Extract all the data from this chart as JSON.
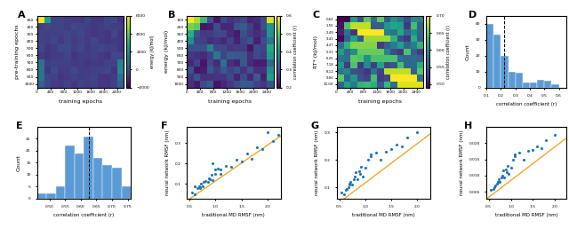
{
  "fig_width": 6.4,
  "fig_height": 2.57,
  "panel_A": {
    "label": "A",
    "xlabel": "training epochs",
    "ylabel": "pre-training epochs",
    "cbar_label": "energy (kJ/mol)",
    "vmin": -2000,
    "vmax": 6000,
    "cmap": "viridis",
    "nrows": 10,
    "ncols": 13,
    "xtick_vals": [
      0,
      400,
      800,
      1200,
      1600,
      2000,
      2400
    ],
    "ytick_vals": [
      100,
      200,
      300,
      400,
      500,
      600,
      700,
      800,
      900,
      1000
    ],
    "cbar_ticks": [
      -2000,
      0,
      2000,
      4000,
      6000
    ]
  },
  "panel_B": {
    "label": "B",
    "xlabel": "training epochs",
    "ylabel": "energy (kJ/mol)",
    "cbar_label": "correlation coefficient (r)",
    "vmin": 0.2,
    "vmax": 0.6,
    "cmap": "viridis",
    "nrows": 10,
    "ncols": 13,
    "xtick_vals": [
      0,
      400,
      800,
      1200,
      1600,
      2000,
      2400
    ],
    "ytick_vals": [
      100,
      200,
      300,
      400,
      500,
      600,
      700,
      800,
      900,
      1000
    ],
    "cbar_ticks": [
      0.2,
      0.3,
      0.4,
      0.5,
      0.6
    ]
  },
  "panel_C": {
    "label": "C",
    "xlabel": "training epochs",
    "ylabel": "correlation coefficient (r)",
    "ylabel2": "RT* (kJ/mol)",
    "cbar_label": "correlation coefficient (r)",
    "vmin": 0.49,
    "vmax": 0.7,
    "cmap": "viridis",
    "nrows": 11,
    "ncols": 13,
    "xtick_vals": [
      0,
      400,
      800,
      1200,
      1600,
      2000,
      2400
    ],
    "ytick_str": [
      "0.62",
      "1.55",
      "2.49",
      "3.43",
      "4.37",
      "5.31",
      "6.25",
      "7.18",
      "8.12",
      "9.06",
      "10.00"
    ],
    "cbar_ticks": [
      0.5,
      0.55,
      0.6,
      0.65,
      0.7
    ]
  },
  "panel_D": {
    "label": "D",
    "xlabel": "correlation coefficient (r)",
    "ylabel": "Count",
    "bar_values": [
      40,
      33,
      20,
      10,
      9,
      3,
      3,
      5,
      4,
      2
    ],
    "bar_edges": [
      0.1,
      0.15,
      0.2,
      0.25,
      0.3,
      0.35,
      0.4,
      0.45,
      0.5,
      0.55,
      0.6
    ],
    "bar_color": "#5b9bd5",
    "dashed_x": 0.22,
    "ylim": [
      0,
      45
    ],
    "xlim": [
      0.1,
      0.65
    ],
    "xticks": [
      0.1,
      0.2,
      0.3,
      0.4,
      0.5,
      0.6
    ],
    "yticks": [
      0,
      10,
      20,
      30,
      40
    ]
  },
  "panel_E": {
    "label": "E",
    "xlabel": "correlation coefficient (r)",
    "ylabel": "Count",
    "bar_values": [
      2,
      2,
      5,
      22,
      19,
      26,
      17,
      14,
      13,
      5
    ],
    "bar_edges": [
      0.46,
      0.49,
      0.52,
      0.55,
      0.58,
      0.61,
      0.64,
      0.67,
      0.7,
      0.73,
      0.76
    ],
    "bar_color": "#5b9bd5",
    "dashed_x": 0.625,
    "ylim": [
      0,
      30
    ],
    "xlim": [
      0.46,
      0.76
    ],
    "xticks": [
      0.5,
      0.55,
      0.6,
      0.65,
      0.7,
      0.75
    ],
    "yticks": [
      0,
      5,
      10,
      15,
      20,
      25
    ]
  },
  "panel_F": {
    "label": "F",
    "xlabel": "traditional MD RMSF (nm)",
    "ylabel": "neural network RMSF (nm)",
    "scatter_x": [
      0.55,
      0.6,
      0.65,
      0.68,
      0.7,
      0.72,
      0.75,
      0.78,
      0.8,
      0.85,
      0.88,
      0.9,
      0.92,
      0.95,
      1.0,
      1.0,
      1.05,
      1.1,
      1.1,
      1.2,
      1.3,
      1.4,
      1.5,
      1.6,
      1.7,
      1.8,
      1.9,
      2.0,
      2.1,
      2.2,
      0.6,
      0.7,
      0.95
    ],
    "scatter_y": [
      0.06,
      0.05,
      0.08,
      0.09,
      0.085,
      0.1,
      0.09,
      0.11,
      0.115,
      0.11,
      0.13,
      0.125,
      0.145,
      0.12,
      0.15,
      0.17,
      0.175,
      0.17,
      0.15,
      0.19,
      0.185,
      0.22,
      0.21,
      0.25,
      0.225,
      0.28,
      0.27,
      0.355,
      0.31,
      0.34,
      0.09,
      0.08,
      0.2
    ],
    "line_x": [
      0.45,
      2.25
    ],
    "line_y": [
      0.018,
      0.335
    ],
    "line_color": "#f5a623",
    "scatter_color": "#1f77b4",
    "xlim": [
      0.45,
      2.25
    ],
    "ylim": [
      0.03,
      0.38
    ],
    "xticks": [
      0.5,
      1.0,
      1.5,
      2.0
    ],
    "yticks": [
      0.1,
      0.2,
      0.3
    ]
  },
  "panel_G": {
    "label": "G",
    "xlabel": "traditional MD RMSF (nm)",
    "ylabel": "neural network RMSF (nm)",
    "scatter_x": [
      0.55,
      0.6,
      0.62,
      0.65,
      0.68,
      0.7,
      0.72,
      0.75,
      0.78,
      0.8,
      0.82,
      0.85,
      0.88,
      0.9,
      0.92,
      0.95,
      1.0,
      1.05,
      1.1,
      1.1,
      1.2,
      1.3,
      1.4,
      1.5,
      1.6,
      1.7,
      1.8,
      2.0,
      0.7
    ],
    "scatter_y": [
      0.08,
      0.075,
      0.09,
      0.095,
      0.1,
      0.115,
      0.12,
      0.11,
      0.13,
      0.14,
      0.155,
      0.13,
      0.16,
      0.15,
      0.175,
      0.14,
      0.17,
      0.2,
      0.215,
      0.22,
      0.225,
      0.2,
      0.23,
      0.24,
      0.255,
      0.25,
      0.28,
      0.3,
      0.11
    ],
    "line_x": [
      0.45,
      2.25
    ],
    "line_y": [
      0.038,
      0.295
    ],
    "line_color": "#f5a623",
    "scatter_color": "#1f77b4",
    "xlim": [
      0.45,
      2.25
    ],
    "ylim": [
      0.06,
      0.32
    ],
    "xticks": [
      0.5,
      1.0,
      1.5,
      2.0
    ],
    "yticks": [
      0.1,
      0.2,
      0.3
    ]
  },
  "panel_H": {
    "label": "H",
    "xlabel": "traditional MD RMSF (nm)",
    "ylabel": "neural network RMSF (nm)",
    "scatter_x": [
      0.55,
      0.6,
      0.62,
      0.65,
      0.68,
      0.7,
      0.72,
      0.75,
      0.78,
      0.8,
      0.82,
      0.85,
      0.88,
      0.9,
      0.92,
      0.95,
      1.0,
      1.05,
      1.1,
      1.1,
      1.2,
      1.3,
      1.4,
      1.5,
      1.6,
      1.7,
      1.8,
      2.0,
      0.7
    ],
    "scatter_y": [
      0.0055,
      0.006,
      0.0065,
      0.007,
      0.0075,
      0.0082,
      0.009,
      0.008,
      0.0095,
      0.01,
      0.0115,
      0.0095,
      0.012,
      0.011,
      0.013,
      0.0105,
      0.0125,
      0.015,
      0.016,
      0.0165,
      0.017,
      0.015,
      0.0175,
      0.018,
      0.019,
      0.0185,
      0.021,
      0.0225,
      0.008
    ],
    "line_x": [
      0.45,
      2.25
    ],
    "line_y": [
      0.0028,
      0.0215
    ],
    "line_color": "#f5a623",
    "scatter_color": "#1f77b4",
    "xlim": [
      0.45,
      2.25
    ],
    "ylim": [
      0.003,
      0.025
    ],
    "xticks": [
      0.5,
      1.0,
      1.5,
      2.0
    ],
    "yticks": [
      0.005,
      0.01,
      0.015,
      0.02
    ]
  }
}
